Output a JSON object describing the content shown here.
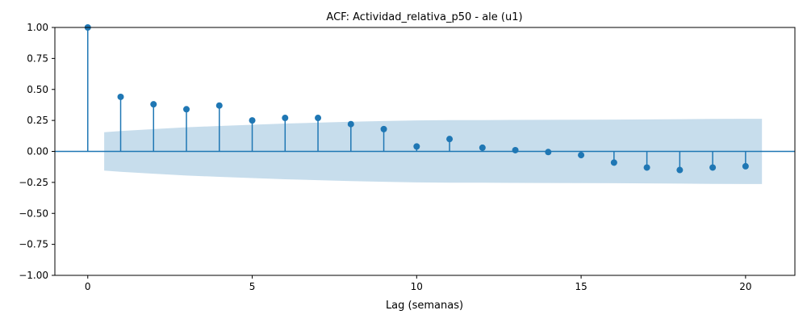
{
  "chart_data": {
    "type": "stem",
    "title": "ACF: Actividad_relativa_p50 - ale (u1)",
    "xlabel": "Lag (semanas)",
    "ylabel": "",
    "xlim": [
      -1,
      21.5
    ],
    "ylim": [
      -1.0,
      1.0
    ],
    "xticks": [
      0,
      5,
      10,
      15,
      20
    ],
    "xtick_labels": [
      "0",
      "5",
      "10",
      "15",
      "20"
    ],
    "yticks": [
      -1.0,
      -0.75,
      -0.5,
      -0.25,
      0.0,
      0.25,
      0.5,
      0.75,
      1.0
    ],
    "ytick_labels": [
      "−1.00",
      "−0.75",
      "−0.50",
      "−0.25",
      "0.00",
      "0.25",
      "0.50",
      "0.75",
      "1.00"
    ],
    "lags": [
      0,
      1,
      2,
      3,
      4,
      5,
      6,
      7,
      8,
      9,
      10,
      11,
      12,
      13,
      14,
      15,
      16,
      17,
      18,
      19,
      20
    ],
    "acf": [
      1.0,
      0.44,
      0.38,
      0.34,
      0.37,
      0.25,
      0.27,
      0.27,
      0.22,
      0.18,
      0.04,
      0.1,
      0.03,
      0.01,
      -0.005,
      -0.03,
      -0.09,
      -0.13,
      -0.15,
      -0.13,
      -0.12
    ],
    "confidence_band": {
      "x": [
        0.5,
        1,
        2,
        3,
        4,
        5,
        6,
        7,
        8,
        9,
        10,
        11,
        12,
        13,
        14,
        15,
        16,
        17,
        18,
        19,
        20,
        20.5
      ],
      "upper": [
        0.155,
        0.165,
        0.18,
        0.195,
        0.205,
        0.215,
        0.225,
        0.232,
        0.24,
        0.245,
        0.25,
        0.252,
        0.253,
        0.254,
        0.255,
        0.256,
        0.257,
        0.258,
        0.26,
        0.262,
        0.263,
        0.263
      ],
      "lower": [
        -0.155,
        -0.165,
        -0.18,
        -0.195,
        -0.205,
        -0.215,
        -0.225,
        -0.232,
        -0.24,
        -0.245,
        -0.25,
        -0.252,
        -0.253,
        -0.254,
        -0.255,
        -0.256,
        -0.257,
        -0.258,
        -0.26,
        -0.262,
        -0.263,
        -0.263
      ]
    },
    "zero_line": true,
    "grid": false,
    "colors": {
      "stem": "#1f77b4",
      "band": "#1f77b4",
      "band_opacity": 0.25
    }
  }
}
